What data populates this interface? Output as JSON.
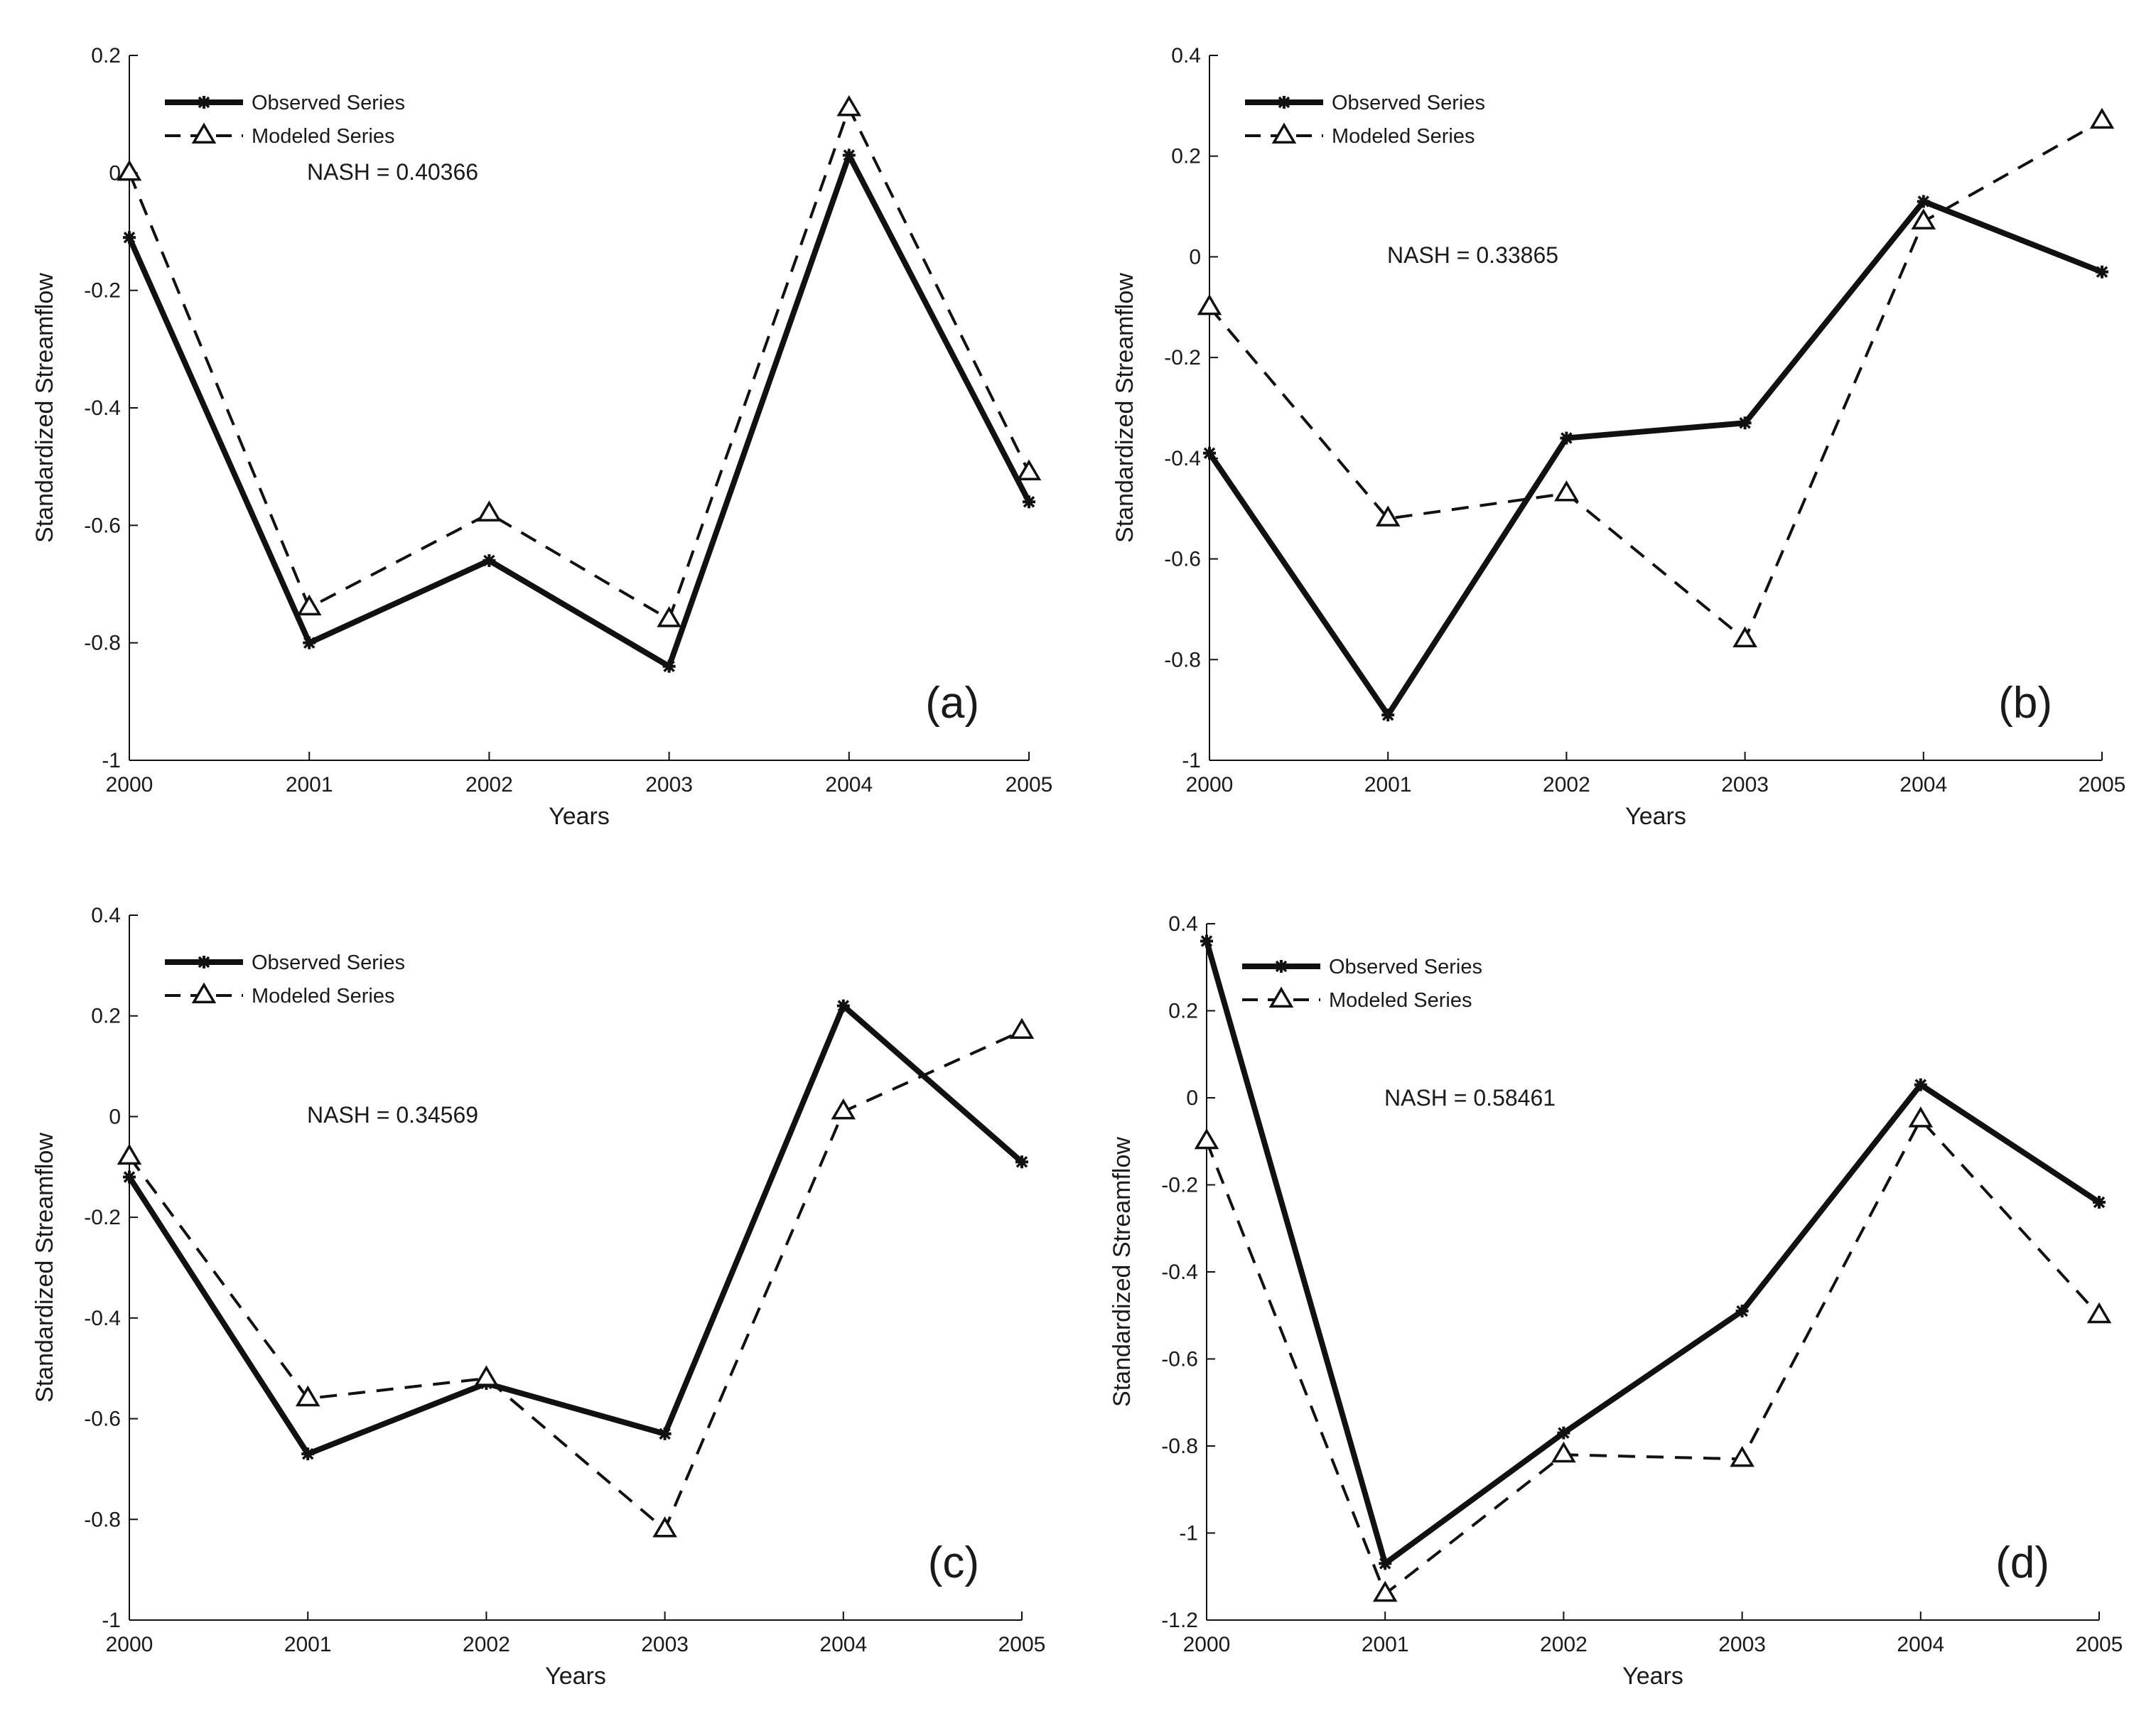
{
  "figure": {
    "colors": {
      "line": "#111111",
      "background": "#ffffff"
    }
  },
  "chart_data": [
    {
      "type": "line",
      "panel_label": "(a)",
      "annotation": "NASH = 0.40366",
      "xlabel": "Years",
      "ylabel": "Standardized Streamflow",
      "xlim": [
        2000,
        2005
      ],
      "ylim": [
        -1,
        0.2
      ],
      "yticks": [
        -1,
        -0.8,
        -0.6,
        -0.4,
        -0.2,
        0,
        0.2
      ],
      "ytick_labels": [
        "-1",
        "-0.8",
        "-0.6",
        "-0.4",
        "-0.2",
        "0",
        "0.2"
      ],
      "x": [
        2000,
        2001,
        2002,
        2003,
        2004,
        2005
      ],
      "xtick_labels": [
        "2000",
        "2001",
        "2002",
        "2003",
        "2004",
        "2005"
      ],
      "series": [
        {
          "name": "Observed Series",
          "style": "solid",
          "marker": "star",
          "values": [
            -0.11,
            -0.8,
            -0.66,
            -0.84,
            0.03,
            -0.56
          ]
        },
        {
          "name": "Modeled Series",
          "style": "dashed",
          "marker": "triangle",
          "values": [
            0.0,
            -0.74,
            -0.58,
            -0.76,
            0.11,
            -0.51
          ]
        }
      ]
    },
    {
      "type": "line",
      "panel_label": "(b)",
      "annotation": "NASH = 0.33865",
      "xlabel": "Years",
      "ylabel": "Standardized Streamflow",
      "xlim": [
        2000,
        2005
      ],
      "ylim": [
        -1,
        0.4
      ],
      "yticks": [
        -1,
        -0.8,
        -0.6,
        -0.4,
        -0.2,
        0,
        0.2,
        0.4
      ],
      "ytick_labels": [
        "-1",
        "-0.8",
        "-0.6",
        "-0.4",
        "-0.2",
        "0",
        "0.2",
        "0.4"
      ],
      "x": [
        2000,
        2001,
        2002,
        2003,
        2004,
        2005
      ],
      "xtick_labels": [
        "2000",
        "2001",
        "2002",
        "2003",
        "2004",
        "2005"
      ],
      "series": [
        {
          "name": "Observed Series",
          "style": "solid",
          "marker": "star",
          "values": [
            -0.39,
            -0.91,
            -0.36,
            -0.33,
            0.11,
            -0.03
          ]
        },
        {
          "name": "Modeled Series",
          "style": "dashed",
          "marker": "triangle",
          "values": [
            -0.1,
            -0.52,
            -0.47,
            -0.76,
            0.07,
            0.27
          ]
        }
      ]
    },
    {
      "type": "line",
      "panel_label": "(c)",
      "annotation": "NASH = 0.34569",
      "xlabel": "Years",
      "ylabel": "Standardized Streamflow",
      "xlim": [
        2000,
        2005
      ],
      "ylim": [
        -1,
        0.4
      ],
      "yticks": [
        -1,
        -0.8,
        -0.6,
        -0.4,
        -0.2,
        0,
        0.2,
        0.4
      ],
      "ytick_labels": [
        "-1",
        "-0.8",
        "-0.6",
        "-0.4",
        "-0.2",
        "0",
        "0.2",
        "0.4"
      ],
      "x": [
        2000,
        2001,
        2002,
        2003,
        2004,
        2005
      ],
      "xtick_labels": [
        "2000",
        "2001",
        "2002",
        "2003",
        "2004",
        "2005"
      ],
      "series": [
        {
          "name": "Observed Series",
          "style": "solid",
          "marker": "star",
          "values": [
            -0.12,
            -0.67,
            -0.53,
            -0.63,
            0.22,
            -0.09
          ]
        },
        {
          "name": "Modeled Series",
          "style": "dashed",
          "marker": "triangle",
          "values": [
            -0.08,
            -0.56,
            -0.52,
            -0.82,
            0.01,
            0.17
          ]
        }
      ]
    },
    {
      "type": "line",
      "panel_label": "(d)",
      "annotation": "NASH = 0.58461",
      "xlabel": "Years",
      "ylabel": "Standardized Streamflow",
      "xlim": [
        2000,
        2005
      ],
      "ylim": [
        -1.2,
        0.4
      ],
      "yticks": [
        -1.2,
        -1,
        -0.8,
        -0.6,
        -0.4,
        -0.2,
        0,
        0.2,
        0.4
      ],
      "ytick_labels": [
        "-1.2",
        "-1",
        "-0.8",
        "-0.6",
        "-0.4",
        "-0.2",
        "0",
        "0.2",
        "0.4"
      ],
      "x": [
        2000,
        2001,
        2002,
        2003,
        2004,
        2005
      ],
      "xtick_labels": [
        "2000",
        "2001",
        "2002",
        "2003",
        "2004",
        "2005"
      ],
      "series": [
        {
          "name": "Observed Series",
          "style": "solid",
          "marker": "star",
          "values": [
            0.36,
            -1.07,
            -0.77,
            -0.49,
            0.03,
            -0.24
          ]
        },
        {
          "name": "Modeled Series",
          "style": "dashed",
          "marker": "triangle",
          "values": [
            -0.1,
            -1.14,
            -0.82,
            -0.83,
            -0.05,
            -0.5
          ]
        }
      ]
    }
  ]
}
